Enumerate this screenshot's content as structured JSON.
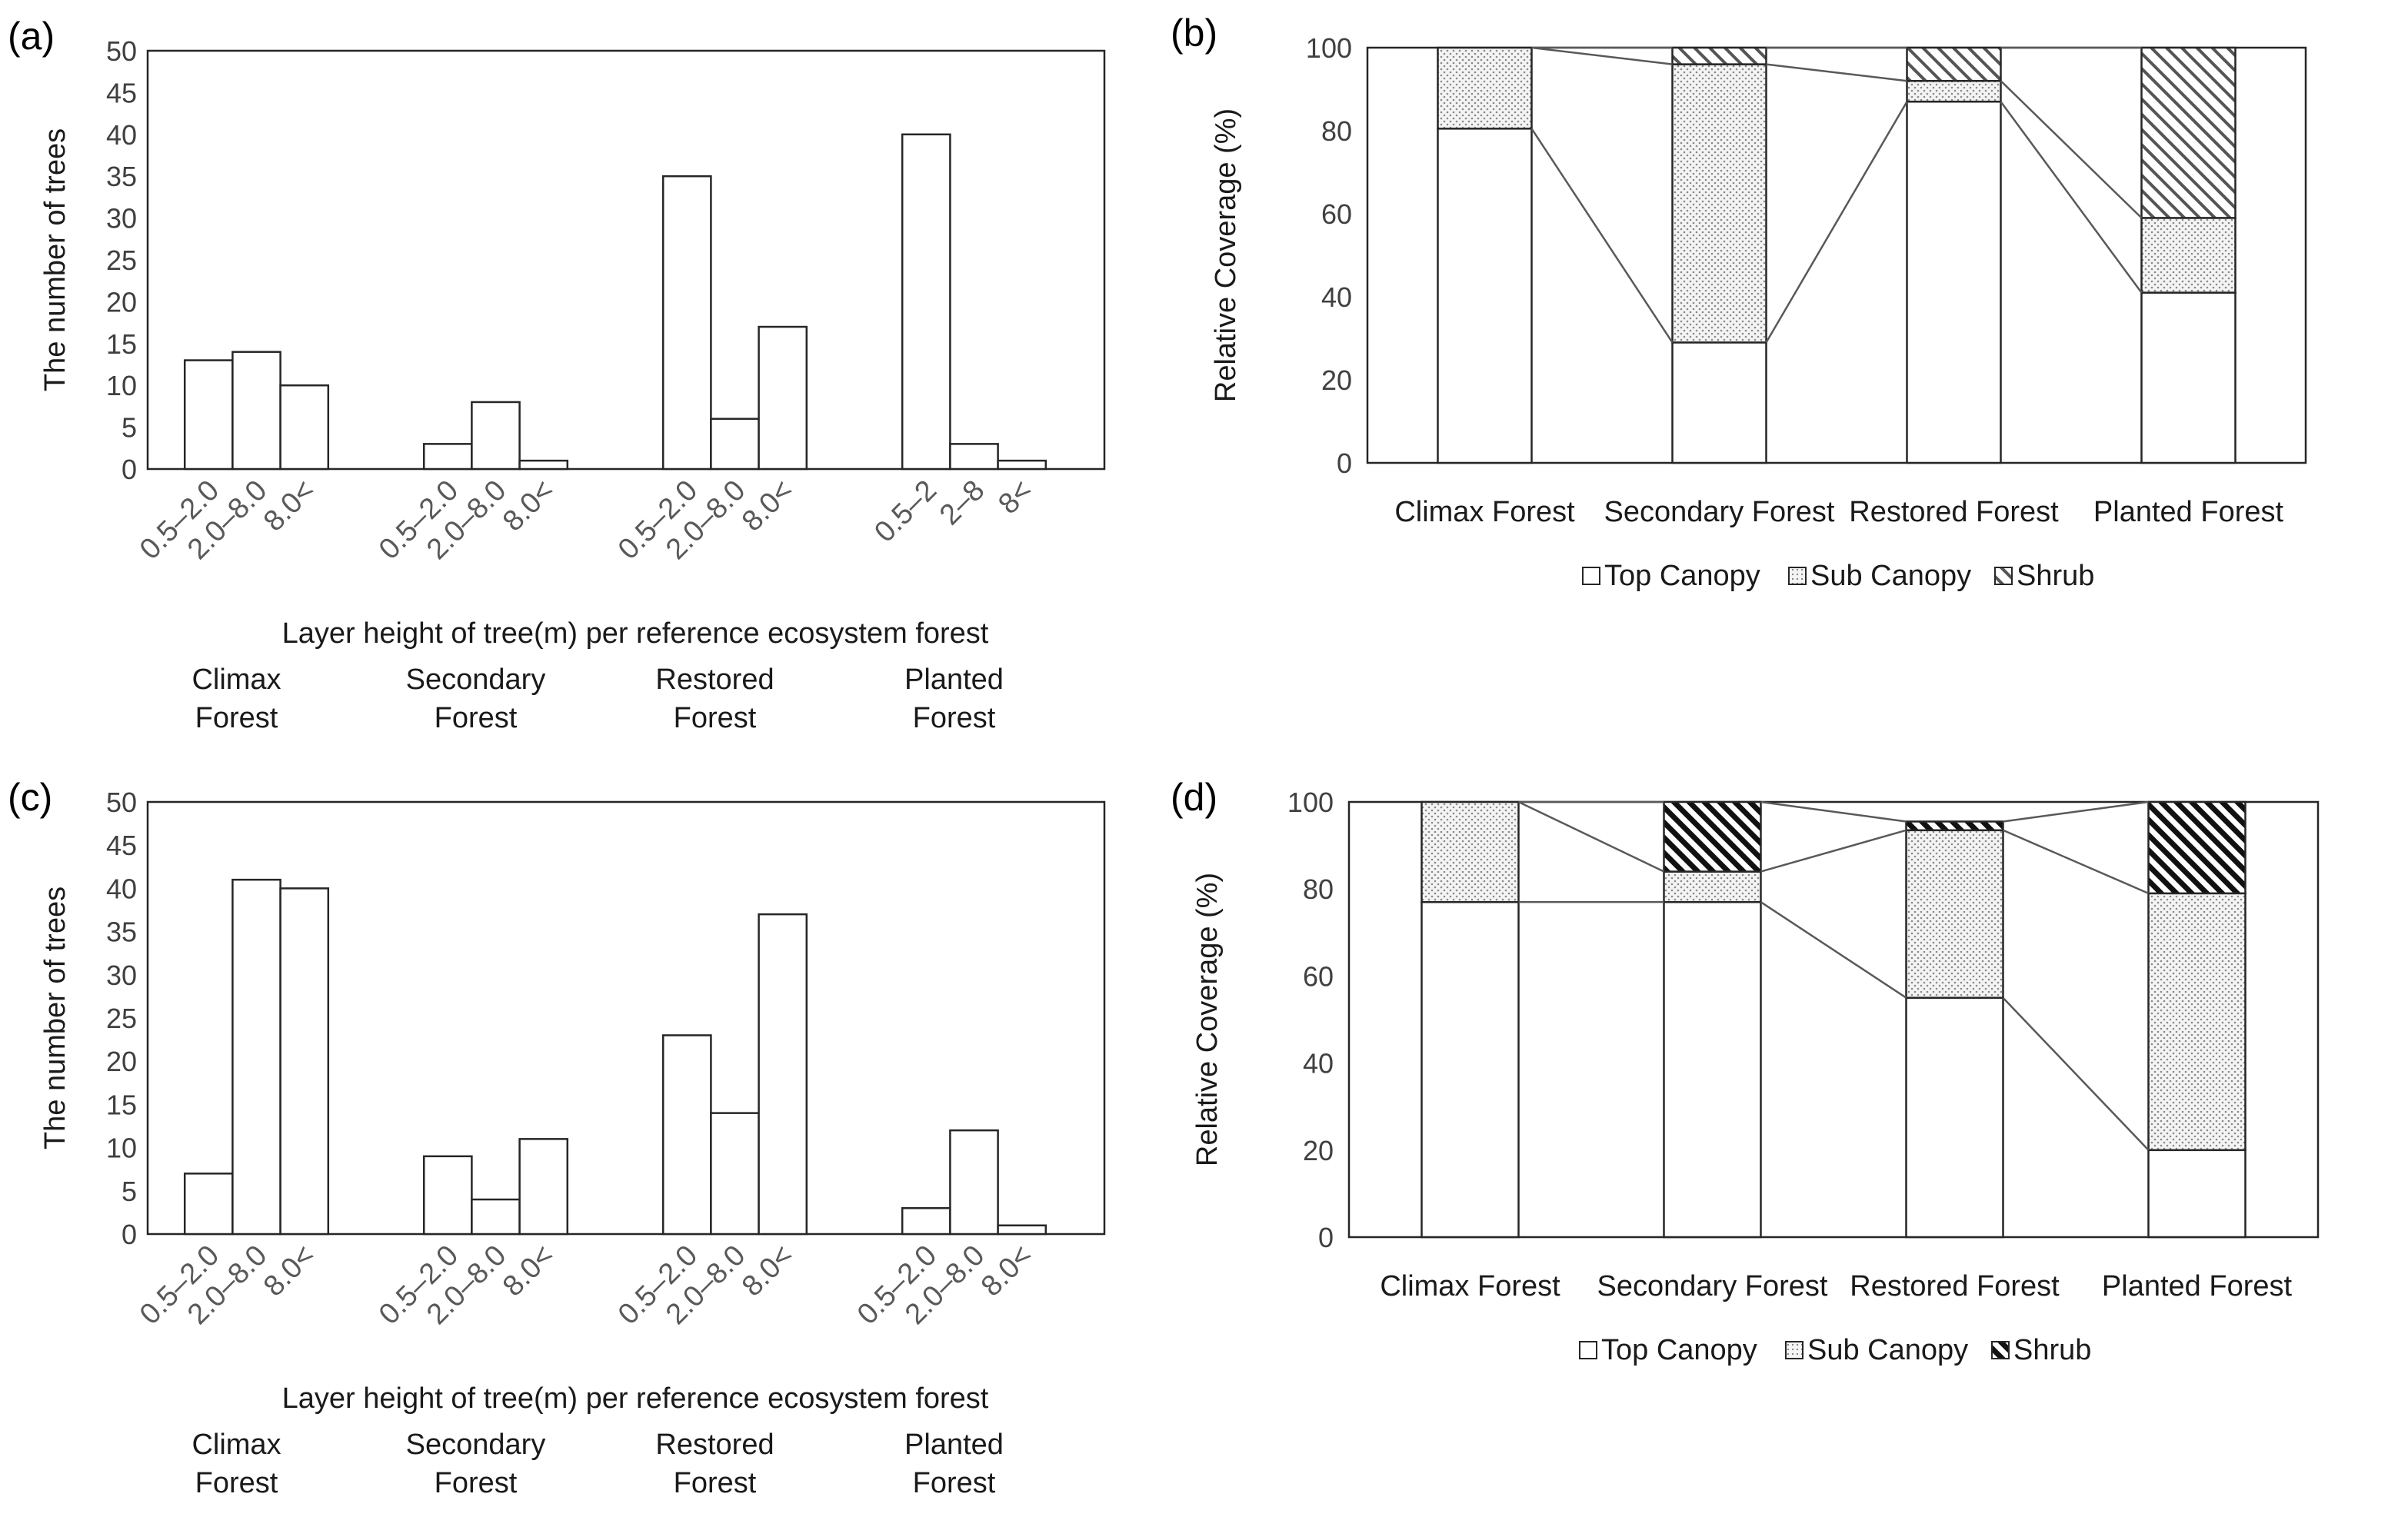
{
  "chart_data": [
    {
      "panel": "(a)",
      "type": "bar",
      "ylabel": "The number of trees",
      "xlabel": "Layer height of tree(m) per reference ecosystem forest",
      "ylim": [
        0,
        50
      ],
      "yticks": [
        0,
        5,
        10,
        15,
        20,
        25,
        30,
        35,
        40,
        45,
        50
      ],
      "groups": [
        {
          "name": "Climax Forest",
          "label_lines": [
            "Climax",
            "Forest"
          ],
          "tick_labels": [
            "0.5–2.0",
            "2.0–8.0",
            "8.0<"
          ],
          "values": [
            13,
            14,
            10
          ]
        },
        {
          "name": "Secondary Forest",
          "label_lines": [
            "Secondary",
            "Forest"
          ],
          "tick_labels": [
            "0.5–2.0",
            "2.0–8.0",
            "8.0<"
          ],
          "values": [
            3,
            8,
            1
          ]
        },
        {
          "name": "Restored Forest",
          "label_lines": [
            "Restored",
            "Forest"
          ],
          "tick_labels": [
            "0.5–2.0",
            "2.0–8.0",
            "8.0<"
          ],
          "values": [
            35,
            6,
            17
          ]
        },
        {
          "name": "Planted Forest",
          "label_lines": [
            "Planted",
            "Forest"
          ],
          "tick_labels": [
            "0.5–2",
            "2–8",
            "8<"
          ],
          "values": [
            40,
            3,
            1
          ]
        }
      ]
    },
    {
      "panel": "(b)",
      "type": "bar",
      "stacked": true,
      "ylabel": "Relative Coverage (%)",
      "ylim": [
        0,
        100
      ],
      "yticks": [
        0,
        20,
        40,
        60,
        80,
        100
      ],
      "categories": [
        "Climax Forest",
        "Secondary Forest",
        "Restored Forest",
        "Planted Forest"
      ],
      "series": [
        {
          "name": "Top Canopy",
          "pattern": "none",
          "values": [
            80.5,
            29,
            87,
            41
          ]
        },
        {
          "name": "Sub Canopy",
          "pattern": "dots",
          "values": [
            19.5,
            67,
            5,
            18
          ]
        },
        {
          "name": "Shrub",
          "pattern": "hatch",
          "values": [
            0,
            4,
            8,
            41
          ]
        }
      ]
    },
    {
      "panel": "(c)",
      "type": "bar",
      "ylabel": "The number of trees",
      "xlabel": "Layer height of tree(m) per reference ecosystem forest",
      "ylim": [
        0,
        50
      ],
      "yticks": [
        0,
        5,
        10,
        15,
        20,
        25,
        30,
        35,
        40,
        45,
        50
      ],
      "groups": [
        {
          "name": "Climax Forest",
          "label_lines": [
            "Climax",
            "Forest"
          ],
          "tick_labels": [
            "0.5–2.0",
            "2.0–8.0",
            "8.0<"
          ],
          "values": [
            7,
            41,
            40
          ]
        },
        {
          "name": "Secondary Forest",
          "label_lines": [
            "Secondary",
            "Forest"
          ],
          "tick_labels": [
            "0.5–2.0",
            "2.0–8.0",
            "8.0<"
          ],
          "values": [
            9,
            4,
            11
          ]
        },
        {
          "name": "Restored Forest",
          "label_lines": [
            "Restored",
            "Forest"
          ],
          "tick_labels": [
            "0.5–2.0",
            "2.0–8.0",
            "8.0<"
          ],
          "values": [
            23,
            14,
            37
          ]
        },
        {
          "name": "Planted Forest",
          "label_lines": [
            "Planted",
            "Forest"
          ],
          "tick_labels": [
            "0.5–2.0",
            "2.0–8.0",
            "8.0<"
          ],
          "values": [
            3,
            12,
            1
          ]
        }
      ]
    },
    {
      "panel": "(d)",
      "type": "bar",
      "stacked": true,
      "ylabel": "Relative Coverage (%)",
      "ylim": [
        0,
        100
      ],
      "yticks": [
        0,
        20,
        40,
        60,
        80,
        100
      ],
      "categories": [
        "Climax Forest",
        "Secondary Forest",
        "Restored Forest",
        "Planted Forest"
      ],
      "series": [
        {
          "name": "Top Canopy",
          "pattern": "none",
          "values": [
            77,
            77,
            55,
            20
          ]
        },
        {
          "name": "Sub Canopy",
          "pattern": "dots",
          "values": [
            23,
            7,
            38.5,
            59
          ]
        },
        {
          "name": "Shrub",
          "pattern": "hatch-dark",
          "values": [
            0,
            16,
            2,
            21
          ]
        }
      ]
    }
  ]
}
